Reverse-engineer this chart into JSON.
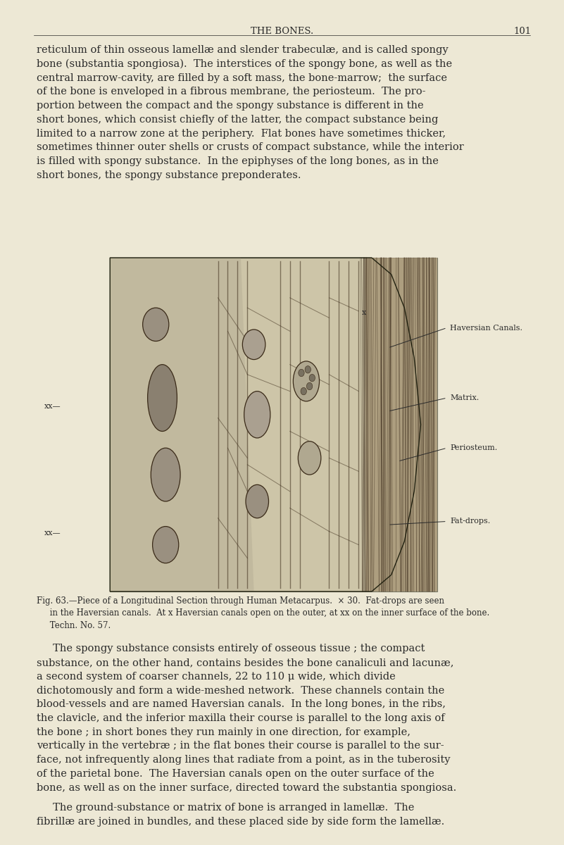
{
  "bg_color": "#ede8d5",
  "page_header": "THE BONES.",
  "page_number": "101",
  "header_fontsize": 9.5,
  "body_fontsize": 10.5,
  "caption_fontsize": 8.5,
  "text_color": "#2a2a2a",
  "ix0": 0.195,
  "ix1": 0.775,
  "iy0": 0.3,
  "iy1": 0.695,
  "top_para_lines": [
    "reticulum of thin osseous lamellæ and slender trabeculæ, and is called spongy",
    "bone (substantia spongiosa).  The interstices of the spongy bone, as well as the",
    "central marrow-cavity, are filled by a soft mass, the bone-marrow;  the surface",
    "of the bone is enveloped in a fibrous membrane, the periosteum.  The pro-",
    "portion between the compact and the spongy substance is different in the",
    "short bones, which consist chiefly of the latter, the compact substance being",
    "limited to a narrow zone at the periphery.  Flat bones have sometimes thicker,",
    "sometimes thinner outer shells or crusts of compact substance, while the interior",
    "is filled with spongy substance.  In the epiphyses of the long bones, as in the",
    "short bones, the spongy substance preponderates."
  ],
  "fig_caption_lines": [
    "Fig. 63.—Piece of a Longitudinal Section through Human Metacarpus.  × 30.  Fat-drops are seen",
    "     in the Haversian canals.  At x Haversian canals open on the outer, at xx on the inner surface of the bone.",
    "     Techn. No. 57."
  ],
  "bottom_para1_lines": [
    "     The spongy substance consists entirely of osseous tissue ; the compact",
    "substance, on the other hand, contains besides the bone canaliculi and lacunæ,",
    "a second system of coarser channels, 22 to 110 μ wide, which divide",
    "dichotomously and form a wide-meshed network.  These channels contain the",
    "blood-vessels and are named Haversian canals.  In the long bones, in the ribs,",
    "the clavicle, and the inferior maxilla their course is parallel to the long axis of",
    "the bone ; in short bones they run mainly in one direction, for example,",
    "vertically in the vertebræ ; in the flat bones their course is parallel to the sur-",
    "face, not infrequently along lines that radiate from a point, as in the tuberosity",
    "of the parietal bone.  The Haversian canals open on the outer surface of the",
    "bone, as well as on the inner surface, directed toward the substantia spongiosa."
  ],
  "bottom_para2_lines": [
    "     The ground-substance or matrix of bone is arranged in lamellæ.  The",
    "fibrillæ are joined in bundles, and these placed side by side form the lamellæ."
  ]
}
